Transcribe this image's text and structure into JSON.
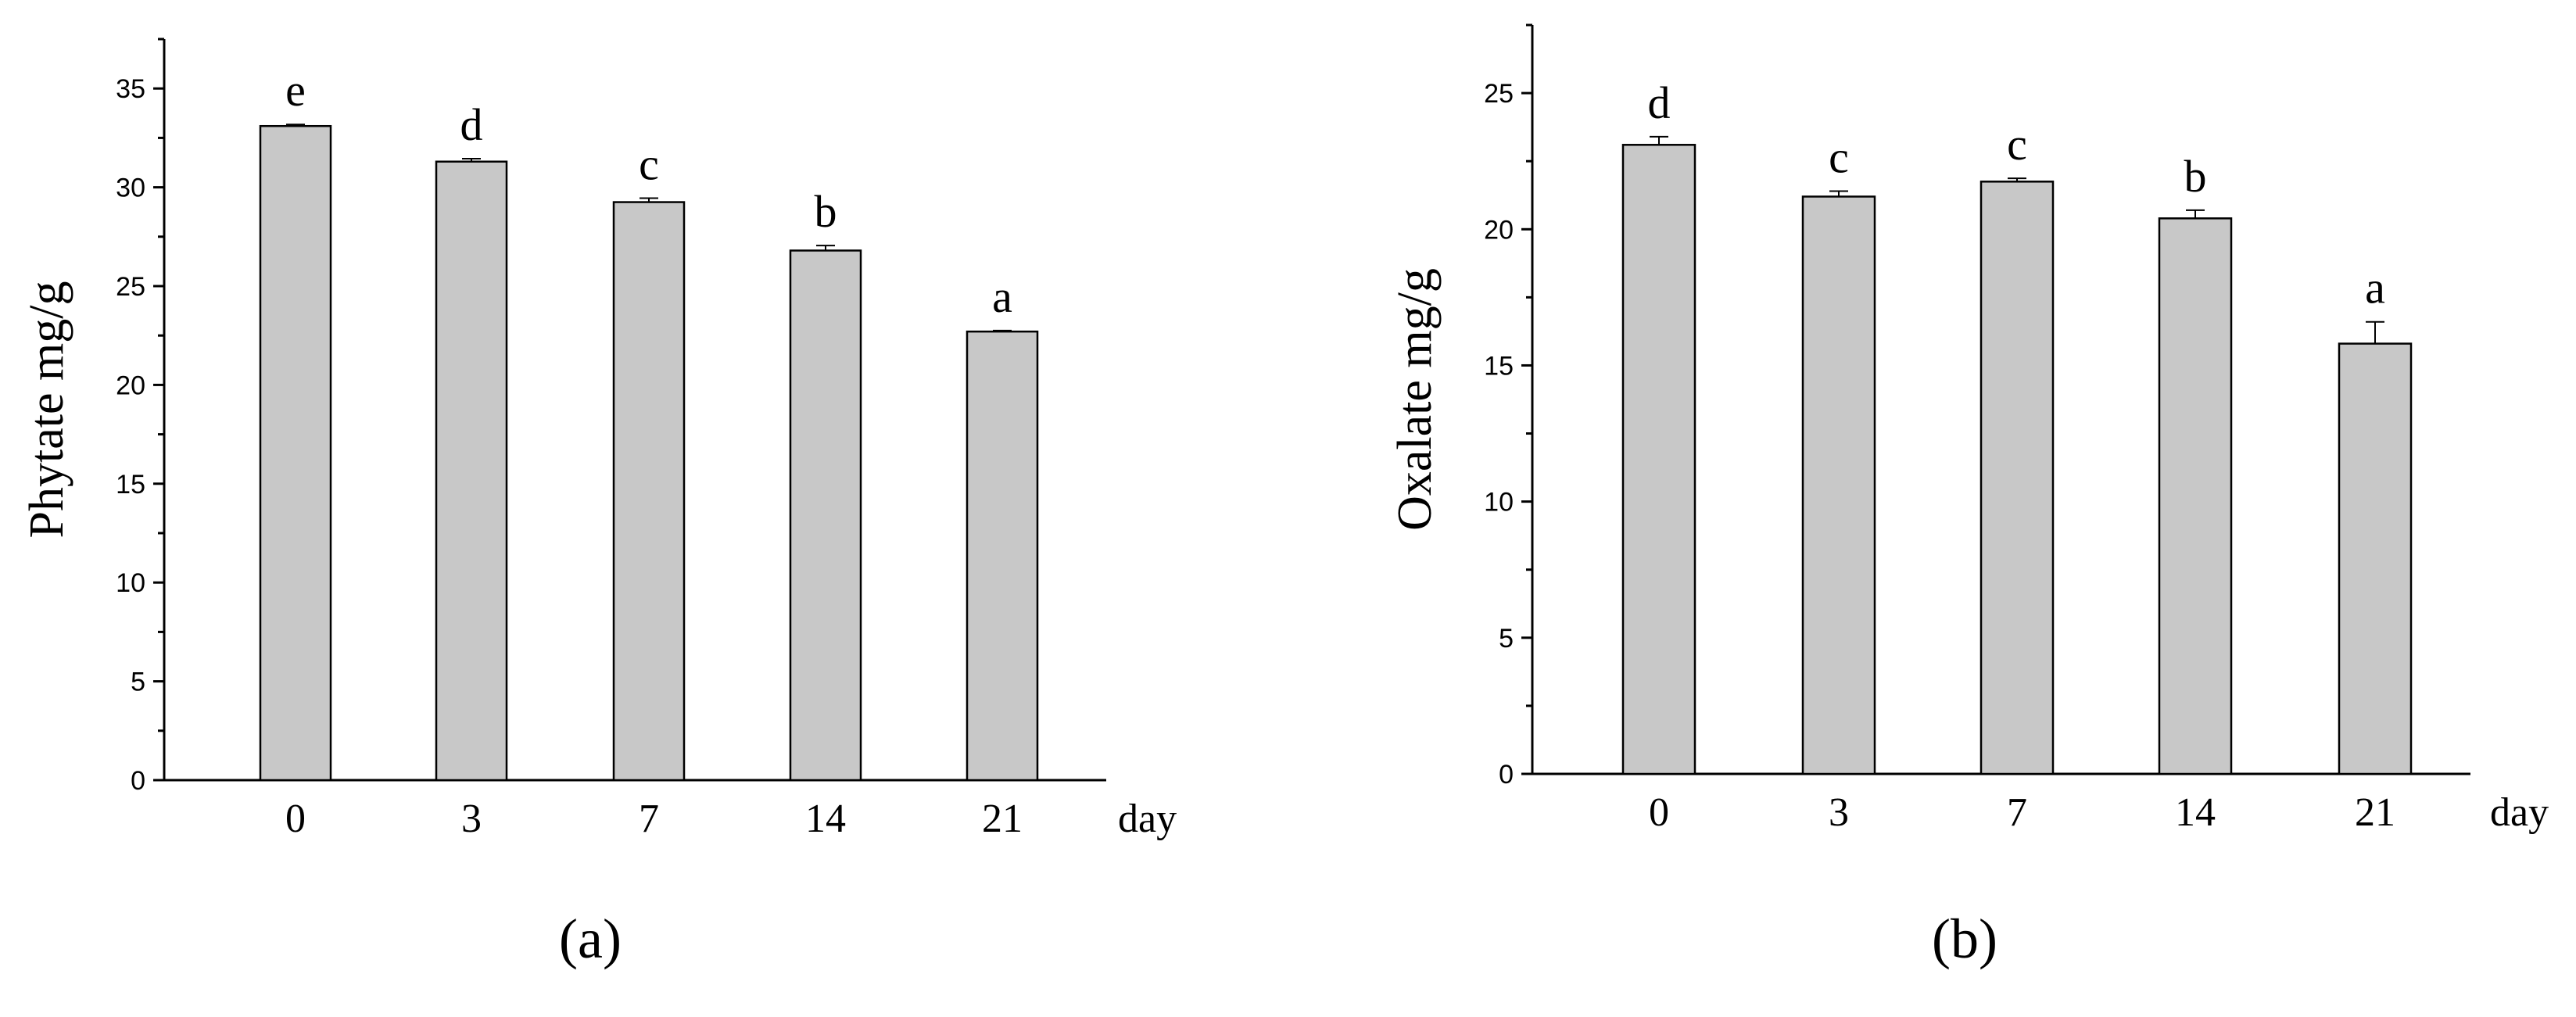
{
  "chart_data": [
    {
      "type": "bar",
      "panel_label": "(a)",
      "categories": [
        "0",
        "3",
        "7",
        "14",
        "21"
      ],
      "values": [
        33.1,
        31.3,
        29.25,
        26.8,
        22.7
      ],
      "errors": [
        0.08,
        0.15,
        0.2,
        0.25,
        0.05
      ],
      "significance_letters": [
        "e",
        "d",
        "c",
        "b",
        "a"
      ],
      "ylabel": "Phytate mg/g",
      "xlabel": "day",
      "ylim": [
        0,
        37.5
      ],
      "yticks": [
        "0",
        "5",
        "10",
        "15",
        "20",
        "25",
        "30",
        "35"
      ],
      "bar_color": "#c8c8c8",
      "grid": false
    },
    {
      "type": "bar",
      "panel_label": "(b)",
      "categories": [
        "0",
        "3",
        "7",
        "14",
        "21"
      ],
      "values": [
        23.1,
        21.2,
        21.75,
        20.4,
        15.8
      ],
      "errors": [
        0.3,
        0.2,
        0.12,
        0.3,
        0.8
      ],
      "significance_letters": [
        "d",
        "c",
        "c",
        "b",
        "a"
      ],
      "ylabel": "Oxalate mg/g",
      "xlabel": "day",
      "ylim": [
        0,
        27.5
      ],
      "yticks": [
        "0",
        "5",
        "10",
        "15",
        "20",
        "25"
      ],
      "bar_color": "#c8c8c8",
      "grid": false
    }
  ]
}
